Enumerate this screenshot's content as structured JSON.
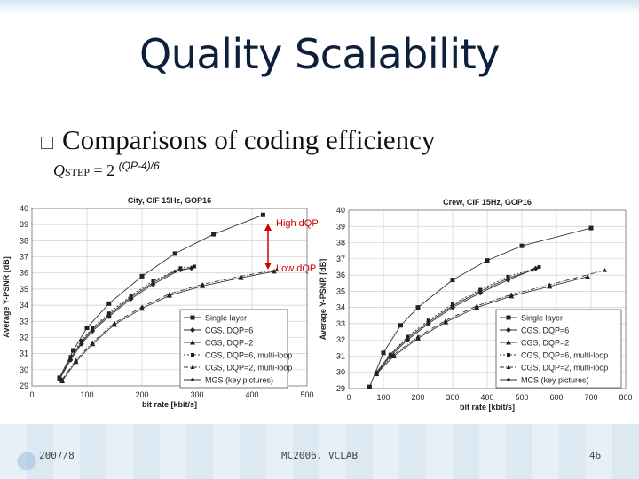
{
  "slide": {
    "title": "Quality Scalability",
    "bullet": "Comparisons of coding efficiency",
    "formula": {
      "q": "Q",
      "sub": "STEP",
      "eq": " = 2 ",
      "exp": "(QP-4)/6"
    },
    "annotations": {
      "high": "High dQP",
      "low": "Low dQP"
    },
    "footer": {
      "date": "2007/8",
      "center": "MC2006, VCLAB",
      "page": "46"
    }
  },
  "chart_data": [
    {
      "type": "line",
      "title": "City, CIF 15Hz, GOP16",
      "xlabel": "bit rate [kbit/s]",
      "ylabel": "Average Y-PSNR [dB]",
      "xlim": [
        0,
        500
      ],
      "ylim": [
        29,
        40
      ],
      "xticks": [
        0,
        100,
        200,
        300,
        400,
        500
      ],
      "yticks": [
        29,
        30,
        31,
        32,
        33,
        34,
        35,
        36,
        37,
        38,
        39,
        40
      ],
      "grid": true,
      "legend_position": "bottom-right",
      "series": [
        {
          "name": "Single layer",
          "marker": "square",
          "dash": "",
          "x": [
            50,
            75,
            100,
            140,
            200,
            260,
            330,
            420
          ],
          "y": [
            29.5,
            31.2,
            32.6,
            34.1,
            35.8,
            37.2,
            38.4,
            39.6
          ]
        },
        {
          "name": "CGS, DQP=6",
          "marker": "diamond",
          "dash": "",
          "x": [
            50,
            70,
            90,
            110,
            140,
            180,
            220,
            270,
            290
          ],
          "y": [
            29.4,
            30.6,
            31.6,
            32.4,
            33.3,
            34.4,
            35.3,
            36.2,
            36.3
          ]
        },
        {
          "name": "CGS, DQP=2",
          "marker": "triangle",
          "dash": "",
          "x": [
            55,
            80,
            110,
            150,
            200,
            250,
            310,
            380,
            440
          ],
          "y": [
            29.3,
            30.5,
            31.6,
            32.8,
            33.8,
            34.6,
            35.2,
            35.7,
            36.1
          ]
        },
        {
          "name": "CGS, DQP=6, multi-loop",
          "marker": "square-small",
          "dash": "2,2",
          "x": [
            50,
            70,
            90,
            110,
            140,
            180,
            220,
            270,
            295
          ],
          "y": [
            29.5,
            30.8,
            31.8,
            32.6,
            33.5,
            34.6,
            35.5,
            36.3,
            36.4
          ]
        },
        {
          "name": "CGS, DQP=2, multi-loop",
          "marker": "triangle-small",
          "dash": "5,2,1,2",
          "x": [
            55,
            80,
            110,
            150,
            200,
            250,
            310,
            380,
            445
          ],
          "y": [
            29.4,
            30.6,
            31.7,
            32.9,
            33.9,
            34.7,
            35.3,
            35.8,
            36.2
          ]
        },
        {
          "name": "MGS (key pictures)",
          "marker": "dot",
          "dash": "",
          "x": [
            50,
            70,
            90,
            110,
            140,
            180,
            220,
            260,
            290
          ],
          "y": [
            29.4,
            30.7,
            31.7,
            32.5,
            33.4,
            34.5,
            35.4,
            36.1,
            36.3
          ]
        }
      ]
    },
    {
      "type": "line",
      "title": "Crew, CIF 15Hz, GOP16",
      "xlabel": "bit rate [kbit/s]",
      "ylabel": "Average Y-PSNR [dB]",
      "xlim": [
        0,
        800
      ],
      "ylim": [
        29,
        40
      ],
      "xticks": [
        0,
        100,
        200,
        300,
        400,
        500,
        600,
        700,
        800
      ],
      "yticks": [
        29,
        30,
        31,
        32,
        33,
        34,
        35,
        36,
        37,
        38,
        39,
        40
      ],
      "grid": true,
      "legend_position": "bottom-right",
      "series": [
        {
          "name": "Single layer",
          "marker": "square",
          "dash": "",
          "x": [
            60,
            100,
            150,
            200,
            300,
            400,
            500,
            700
          ],
          "y": [
            29.1,
            31.2,
            32.9,
            34.0,
            35.7,
            36.9,
            37.8,
            38.9
          ]
        },
        {
          "name": "CGS, DQP=6",
          "marker": "diamond",
          "dash": "",
          "x": [
            80,
            120,
            170,
            230,
            300,
            380,
            460,
            540
          ],
          "y": [
            29.9,
            31.0,
            32.0,
            33.0,
            34.0,
            34.9,
            35.7,
            36.4
          ]
        },
        {
          "name": "CGS, DQP=2",
          "marker": "triangle",
          "dash": "",
          "x": [
            80,
            130,
            200,
            280,
            370,
            470,
            580,
            690
          ],
          "y": [
            29.9,
            31.0,
            32.1,
            33.1,
            34.0,
            34.7,
            35.3,
            35.9
          ]
        },
        {
          "name": "CGS, DQP=6, multi-loop",
          "marker": "square-small",
          "dash": "2,2",
          "x": [
            80,
            120,
            170,
            230,
            300,
            380,
            460,
            550
          ],
          "y": [
            30.0,
            31.1,
            32.2,
            33.2,
            34.2,
            35.1,
            35.9,
            36.5
          ]
        },
        {
          "name": "CGS, DQP=2, multi-loop",
          "marker": "triangle-small",
          "dash": "5,2,1,2",
          "x": [
            80,
            130,
            200,
            280,
            370,
            470,
            580,
            740
          ],
          "y": [
            30.0,
            31.1,
            32.2,
            33.2,
            34.1,
            34.8,
            35.4,
            36.3
          ]
        },
        {
          "name": "MCS (key pictures)",
          "marker": "dot",
          "dash": "",
          "x": [
            80,
            120,
            170,
            230,
            300,
            380,
            460,
            530
          ],
          "y": [
            30.0,
            31.1,
            32.1,
            33.1,
            34.1,
            35.0,
            35.8,
            36.3
          ]
        }
      ]
    }
  ]
}
